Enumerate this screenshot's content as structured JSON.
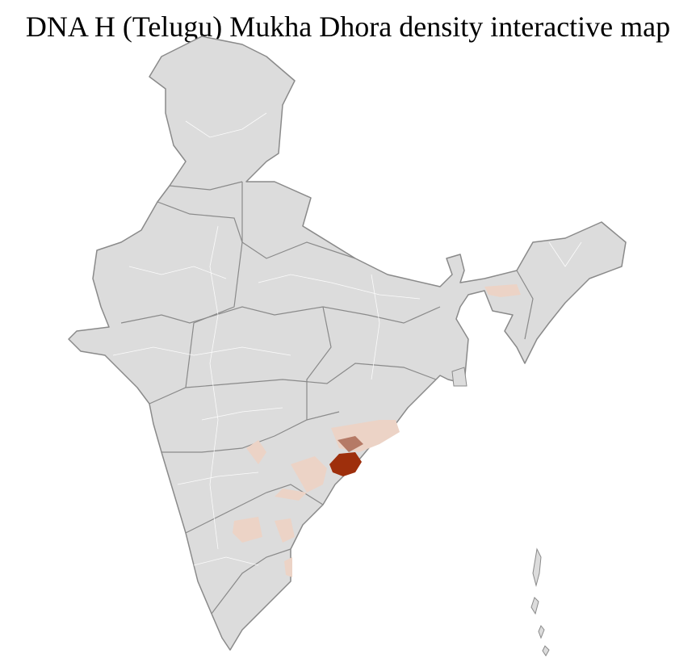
{
  "header": {
    "title": "DNA H (Telugu) Mukha Dhora density interactive map"
  }
}
